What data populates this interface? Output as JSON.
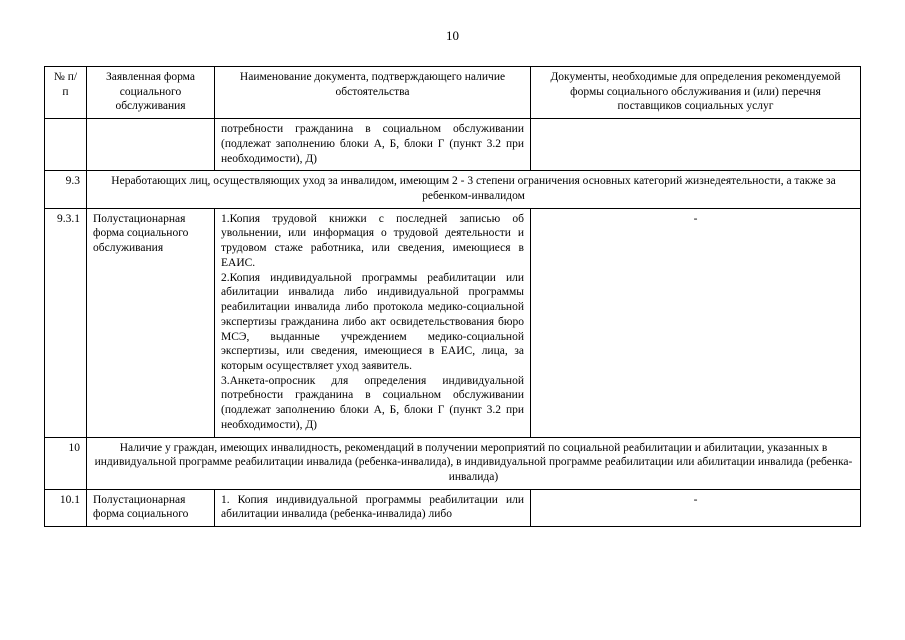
{
  "page_number": "10",
  "table": {
    "columns": {
      "c1": "№ п/п",
      "c2": "Заявленная форма социального обслуживания",
      "c3": "Наименование документа, подтверждающего наличие обстоятельства",
      "c4": "Документы, необходимые для определения рекомендуемой формы социального обслуживания и (или) перечня поставщиков социальных услуг"
    },
    "row_cont": {
      "c3": "потребности гражданина в социальном обслуживании (подлежат заполнению блоки А, Б, блоки Г (пункт 3.2 при необходимости), Д)"
    },
    "row_9_3": {
      "num": "9.3",
      "text": "Неработающих лиц, осуществляющих уход за инвалидом, имеющим 2 - 3 степени ограничения основных категорий жизнедеятельности, а также за ребенком-инвалидом"
    },
    "row_9_3_1": {
      "num": "9.3.1",
      "c2": "Полустационарная форма социального обслуживания",
      "c3": "1.Копия трудовой книжки с последней записью об увольнении, или информация о трудовой деятельности и трудовом стаже работника, или сведения, имеющиеся в ЕАИС.\n2.Копия индивидуальной программы реабилитации или абилитации инвалида либо индивидуальной программы реабилитации инвалида либо протокола медико-социальной экспертизы гражданина либо акт освидетельствования бюро МСЭ, выданные учреждением медико-социальной экспертизы, или сведения, имеющиеся в ЕАИС, лица, за которым осуществляет уход заявитель.\n3.Анкета-опросник для определения индивидуальной потребности гражданина в социальном обслуживании (подлежат заполнению блоки А, Б, блоки Г (пункт 3.2 при необходимости), Д)",
      "c4": "-"
    },
    "row_10": {
      "num": "10",
      "text": "Наличие у граждан, имеющих инвалидность, рекомендаций в получении мероприятий по социальной реабилитации и абилитации, указанных в индивидуальной программе реабилитации инвалида (ребенка-инвалида), в индивидуальной программе реабилитации или абилитации инвалида (ребенка-инвалида)"
    },
    "row_10_1": {
      "num": "10.1",
      "c2": "Полустационарная форма социального",
      "c3": "1. Копия индивидуальной программы реабилитации или абилитации инвалида (ребенка-инвалида) либо",
      "c4": "-"
    }
  }
}
